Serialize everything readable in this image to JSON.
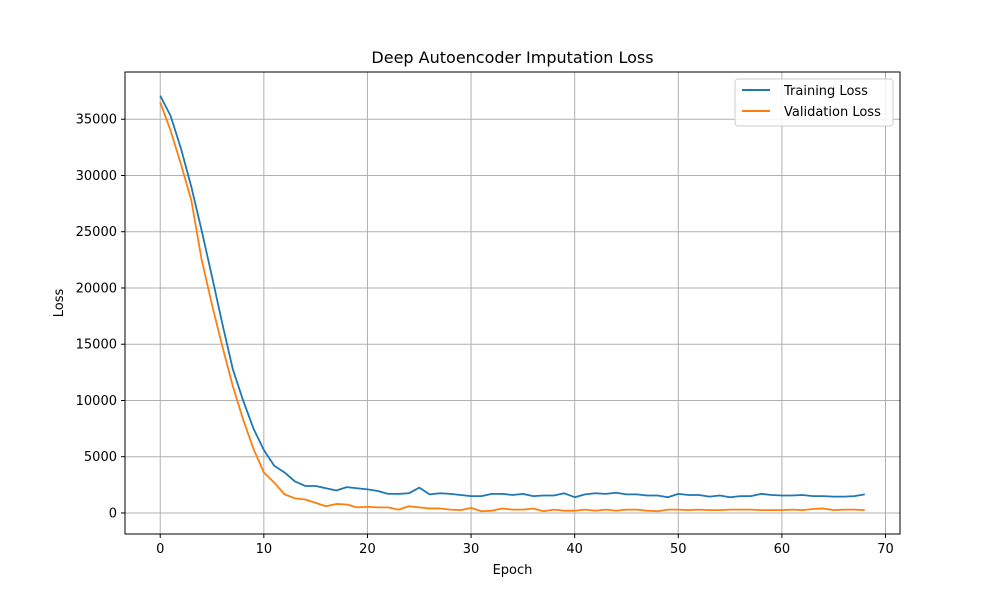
{
  "chart_data": {
    "type": "line",
    "title": "Deep Autoencoder Imputation Loss",
    "xlabel": "Epoch",
    "ylabel": "Loss",
    "xlim": [
      -3.4,
      71.4
    ],
    "ylim": [
      -1870,
      39200
    ],
    "xticks": [
      0,
      10,
      20,
      30,
      40,
      50,
      60,
      70
    ],
    "yticks": [
      0,
      5000,
      10000,
      15000,
      20000,
      25000,
      30000,
      35000
    ],
    "grid": true,
    "legend_position": "top-right",
    "x": [
      0,
      1,
      2,
      3,
      4,
      5,
      6,
      7,
      8,
      9,
      10,
      11,
      12,
      13,
      14,
      15,
      16,
      17,
      18,
      19,
      20,
      21,
      22,
      23,
      24,
      25,
      26,
      27,
      28,
      29,
      30,
      31,
      32,
      33,
      34,
      35,
      36,
      37,
      38,
      39,
      40,
      41,
      42,
      43,
      44,
      45,
      46,
      47,
      48,
      49,
      50,
      51,
      52,
      53,
      54,
      55,
      56,
      57,
      58,
      59,
      60,
      61,
      62,
      63,
      64,
      65,
      66,
      67,
      68
    ],
    "series": [
      {
        "name": "Training Loss",
        "color": "#1f77b4",
        "values": [
          37100,
          35300,
          32400,
          29000,
          25100,
          21000,
          16800,
          12800,
          10000,
          7500,
          5600,
          4200,
          3600,
          2800,
          2400,
          2400,
          2200,
          2000,
          2300,
          2200,
          2100,
          1950,
          1700,
          1700,
          1750,
          2250,
          1650,
          1750,
          1700,
          1600,
          1500,
          1500,
          1700,
          1700,
          1600,
          1700,
          1500,
          1550,
          1550,
          1750,
          1400,
          1650,
          1750,
          1700,
          1800,
          1650,
          1650,
          1550,
          1550,
          1400,
          1700,
          1600,
          1600,
          1450,
          1550,
          1400,
          1500,
          1500,
          1700,
          1600,
          1550,
          1550,
          1600,
          1500,
          1500,
          1450,
          1450,
          1500,
          1650
        ],
        "marker": "none"
      },
      {
        "name": "Validation Loss",
        "color": "#ff7f0e",
        "values": [
          36500,
          34000,
          31000,
          27800,
          22500,
          18500,
          14800,
          11300,
          8300,
          5700,
          3600,
          2700,
          1650,
          1300,
          1200,
          900,
          600,
          800,
          750,
          500,
          550,
          500,
          500,
          300,
          600,
          500,
          400,
          400,
          300,
          250,
          450,
          150,
          200,
          400,
          300,
          300,
          400,
          150,
          300,
          200,
          200,
          300,
          200,
          300,
          200,
          300,
          300,
          200,
          150,
          300,
          300,
          250,
          300,
          250,
          250,
          300,
          300,
          300,
          250,
          250,
          250,
          300,
          250,
          350,
          400,
          250,
          300,
          300,
          250
        ],
        "marker": "none"
      }
    ]
  }
}
